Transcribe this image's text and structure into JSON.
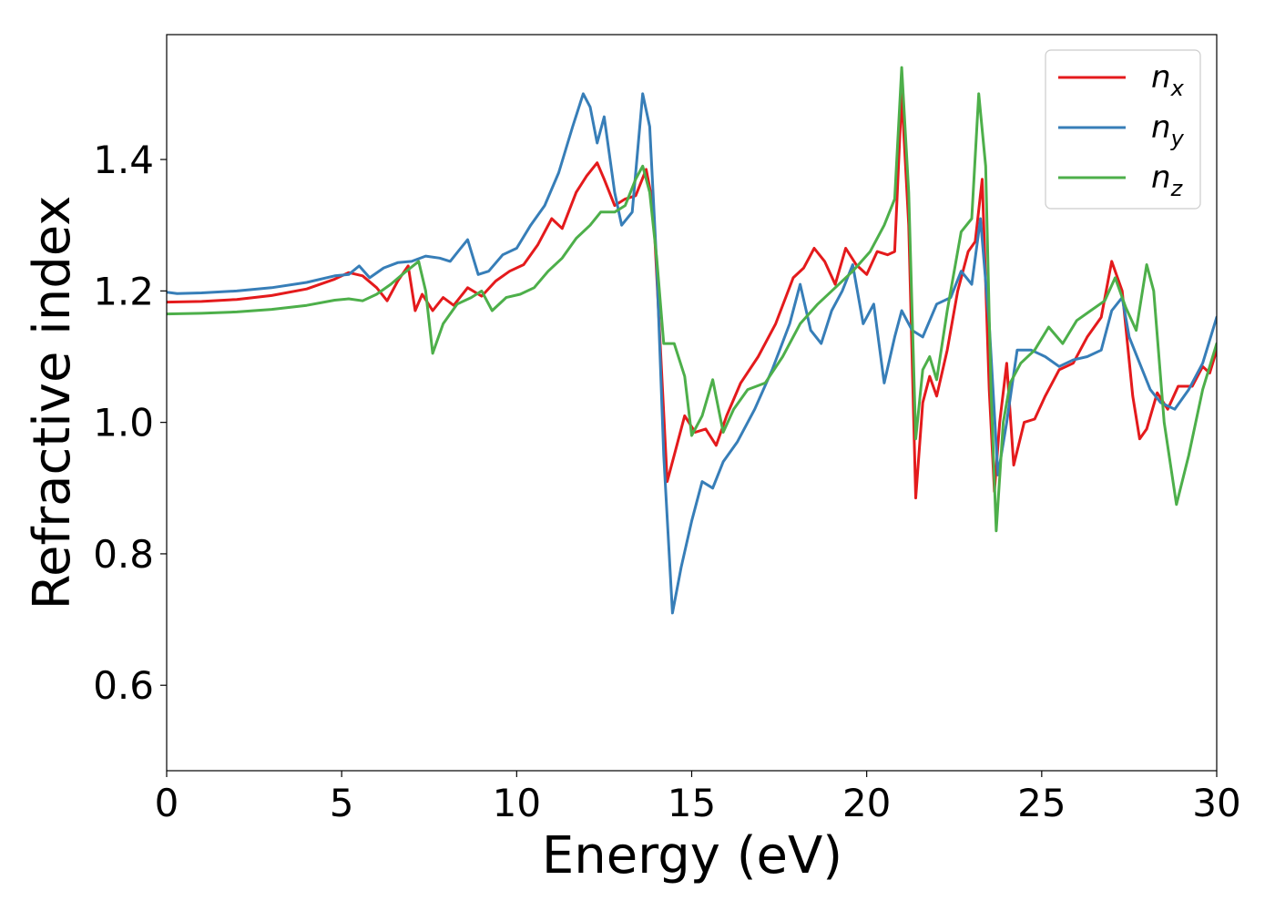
{
  "chart_data": {
    "type": "line",
    "title": "",
    "xlabel": "Energy (eV)",
    "ylabel": "Refractive index",
    "xlim": [
      0,
      30
    ],
    "ylim": [
      0.47,
      1.59
    ],
    "xticks": [
      0,
      5,
      10,
      15,
      20,
      25,
      30
    ],
    "yticks": [
      0.6,
      0.8,
      1.0,
      1.2,
      1.4
    ],
    "xtick_labels": [
      "0",
      "5",
      "10",
      "15",
      "20",
      "25",
      "30"
    ],
    "ytick_labels": [
      "0.6",
      "0.8",
      "1.0",
      "1.2",
      "1.4"
    ],
    "grid": false,
    "legend_position": "top-right",
    "series": [
      {
        "name": "n",
        "subscript": "x",
        "color": "#e41a1c",
        "points": [
          [
            0,
            1.183
          ],
          [
            1,
            1.184
          ],
          [
            2,
            1.187
          ],
          [
            3,
            1.193
          ],
          [
            4,
            1.203
          ],
          [
            4.8,
            1.218
          ],
          [
            5.2,
            1.228
          ],
          [
            5.6,
            1.223
          ],
          [
            6.0,
            1.205
          ],
          [
            6.3,
            1.185
          ],
          [
            6.6,
            1.215
          ],
          [
            6.9,
            1.238
          ],
          [
            7.1,
            1.17
          ],
          [
            7.3,
            1.195
          ],
          [
            7.6,
            1.17
          ],
          [
            7.9,
            1.19
          ],
          [
            8.2,
            1.178
          ],
          [
            8.6,
            1.205
          ],
          [
            9.0,
            1.192
          ],
          [
            9.4,
            1.215
          ],
          [
            9.8,
            1.23
          ],
          [
            10.2,
            1.24
          ],
          [
            10.6,
            1.27
          ],
          [
            11.0,
            1.31
          ],
          [
            11.3,
            1.295
          ],
          [
            11.7,
            1.35
          ],
          [
            12.0,
            1.375
          ],
          [
            12.3,
            1.395
          ],
          [
            12.5,
            1.37
          ],
          [
            12.8,
            1.33
          ],
          [
            13.1,
            1.34
          ],
          [
            13.4,
            1.345
          ],
          [
            13.7,
            1.385
          ],
          [
            13.9,
            1.33
          ],
          [
            14.1,
            1.12
          ],
          [
            14.3,
            0.91
          ],
          [
            14.5,
            0.95
          ],
          [
            14.8,
            1.01
          ],
          [
            15.1,
            0.985
          ],
          [
            15.4,
            0.99
          ],
          [
            15.7,
            0.965
          ],
          [
            16.0,
            1.01
          ],
          [
            16.4,
            1.06
          ],
          [
            16.9,
            1.1
          ],
          [
            17.4,
            1.15
          ],
          [
            17.9,
            1.22
          ],
          [
            18.2,
            1.235
          ],
          [
            18.5,
            1.265
          ],
          [
            18.8,
            1.245
          ],
          [
            19.1,
            1.21
          ],
          [
            19.4,
            1.265
          ],
          [
            19.7,
            1.24
          ],
          [
            20.0,
            1.225
          ],
          [
            20.3,
            1.26
          ],
          [
            20.6,
            1.255
          ],
          [
            20.8,
            1.26
          ],
          [
            21.0,
            1.5
          ],
          [
            21.2,
            1.3
          ],
          [
            21.4,
            0.885
          ],
          [
            21.6,
            1.03
          ],
          [
            21.8,
            1.07
          ],
          [
            22.0,
            1.04
          ],
          [
            22.3,
            1.11
          ],
          [
            22.6,
            1.2
          ],
          [
            22.9,
            1.26
          ],
          [
            23.1,
            1.275
          ],
          [
            23.3,
            1.37
          ],
          [
            23.5,
            1.05
          ],
          [
            23.65,
            0.895
          ],
          [
            23.8,
            1.0
          ],
          [
            24.0,
            1.09
          ],
          [
            24.2,
            0.935
          ],
          [
            24.5,
            1.0
          ],
          [
            24.8,
            1.005
          ],
          [
            25.1,
            1.04
          ],
          [
            25.5,
            1.08
          ],
          [
            25.9,
            1.09
          ],
          [
            26.3,
            1.13
          ],
          [
            26.7,
            1.16
          ],
          [
            27.0,
            1.245
          ],
          [
            27.3,
            1.2
          ],
          [
            27.6,
            1.04
          ],
          [
            27.8,
            0.975
          ],
          [
            28.0,
            0.99
          ],
          [
            28.3,
            1.045
          ],
          [
            28.6,
            1.02
          ],
          [
            28.9,
            1.055
          ],
          [
            29.3,
            1.055
          ],
          [
            29.6,
            1.085
          ],
          [
            29.8,
            1.075
          ],
          [
            30,
            1.11
          ]
        ]
      },
      {
        "name": "n",
        "subscript": "y",
        "color": "#377eb8",
        "points": [
          [
            0,
            1.198
          ],
          [
            0.3,
            1.196
          ],
          [
            1,
            1.197
          ],
          [
            2,
            1.2
          ],
          [
            3,
            1.205
          ],
          [
            4,
            1.213
          ],
          [
            4.8,
            1.223
          ],
          [
            5.2,
            1.225
          ],
          [
            5.5,
            1.238
          ],
          [
            5.8,
            1.22
          ],
          [
            6.2,
            1.235
          ],
          [
            6.6,
            1.243
          ],
          [
            7.0,
            1.245
          ],
          [
            7.4,
            1.253
          ],
          [
            7.8,
            1.25
          ],
          [
            8.1,
            1.245
          ],
          [
            8.4,
            1.265
          ],
          [
            8.6,
            1.278
          ],
          [
            8.9,
            1.225
          ],
          [
            9.2,
            1.23
          ],
          [
            9.6,
            1.255
          ],
          [
            10.0,
            1.265
          ],
          [
            10.4,
            1.3
          ],
          [
            10.8,
            1.33
          ],
          [
            11.2,
            1.38
          ],
          [
            11.6,
            1.45
          ],
          [
            11.9,
            1.5
          ],
          [
            12.1,
            1.48
          ],
          [
            12.3,
            1.425
          ],
          [
            12.5,
            1.465
          ],
          [
            12.8,
            1.35
          ],
          [
            13.0,
            1.3
          ],
          [
            13.3,
            1.32
          ],
          [
            13.6,
            1.5
          ],
          [
            13.8,
            1.45
          ],
          [
            14.0,
            1.24
          ],
          [
            14.2,
            0.95
          ],
          [
            14.45,
            0.71
          ],
          [
            14.7,
            0.78
          ],
          [
            15.0,
            0.85
          ],
          [
            15.3,
            0.91
          ],
          [
            15.6,
            0.9
          ],
          [
            15.9,
            0.94
          ],
          [
            16.3,
            0.97
          ],
          [
            16.8,
            1.02
          ],
          [
            17.3,
            1.08
          ],
          [
            17.8,
            1.15
          ],
          [
            18.1,
            1.21
          ],
          [
            18.4,
            1.14
          ],
          [
            18.7,
            1.12
          ],
          [
            19.0,
            1.17
          ],
          [
            19.3,
            1.2
          ],
          [
            19.6,
            1.24
          ],
          [
            19.9,
            1.15
          ],
          [
            20.2,
            1.18
          ],
          [
            20.5,
            1.06
          ],
          [
            20.8,
            1.13
          ],
          [
            21.0,
            1.17
          ],
          [
            21.3,
            1.14
          ],
          [
            21.6,
            1.13
          ],
          [
            22.0,
            1.18
          ],
          [
            22.4,
            1.19
          ],
          [
            22.7,
            1.23
          ],
          [
            23.0,
            1.21
          ],
          [
            23.25,
            1.31
          ],
          [
            23.5,
            1.15
          ],
          [
            23.75,
            0.92
          ],
          [
            24.0,
            1.0
          ],
          [
            24.3,
            1.11
          ],
          [
            24.7,
            1.11
          ],
          [
            25.1,
            1.1
          ],
          [
            25.5,
            1.085
          ],
          [
            25.9,
            1.095
          ],
          [
            26.3,
            1.1
          ],
          [
            26.7,
            1.11
          ],
          [
            27.0,
            1.17
          ],
          [
            27.3,
            1.19
          ],
          [
            27.5,
            1.13
          ],
          [
            27.8,
            1.09
          ],
          [
            28.1,
            1.05
          ],
          [
            28.4,
            1.03
          ],
          [
            28.8,
            1.02
          ],
          [
            29.2,
            1.05
          ],
          [
            29.6,
            1.09
          ],
          [
            30,
            1.16
          ]
        ]
      },
      {
        "name": "n",
        "subscript": "z",
        "color": "#4daf4a",
        "points": [
          [
            0,
            1.165
          ],
          [
            1,
            1.166
          ],
          [
            2,
            1.168
          ],
          [
            3,
            1.172
          ],
          [
            4,
            1.178
          ],
          [
            4.8,
            1.186
          ],
          [
            5.2,
            1.188
          ],
          [
            5.6,
            1.185
          ],
          [
            6.0,
            1.195
          ],
          [
            6.4,
            1.21
          ],
          [
            6.8,
            1.228
          ],
          [
            7.2,
            1.245
          ],
          [
            7.4,
            1.2
          ],
          [
            7.6,
            1.105
          ],
          [
            7.9,
            1.15
          ],
          [
            8.3,
            1.18
          ],
          [
            8.7,
            1.19
          ],
          [
            9.0,
            1.2
          ],
          [
            9.3,
            1.17
          ],
          [
            9.7,
            1.19
          ],
          [
            10.1,
            1.195
          ],
          [
            10.5,
            1.205
          ],
          [
            10.9,
            1.23
          ],
          [
            11.3,
            1.25
          ],
          [
            11.7,
            1.28
          ],
          [
            12.1,
            1.3
          ],
          [
            12.4,
            1.32
          ],
          [
            12.8,
            1.32
          ],
          [
            13.1,
            1.33
          ],
          [
            13.4,
            1.37
          ],
          [
            13.6,
            1.39
          ],
          [
            13.8,
            1.35
          ],
          [
            14.0,
            1.25
          ],
          [
            14.2,
            1.12
          ],
          [
            14.5,
            1.12
          ],
          [
            14.8,
            1.07
          ],
          [
            15.0,
            0.98
          ],
          [
            15.3,
            1.01
          ],
          [
            15.6,
            1.065
          ],
          [
            15.9,
            0.985
          ],
          [
            16.2,
            1.02
          ],
          [
            16.6,
            1.05
          ],
          [
            17.1,
            1.06
          ],
          [
            17.6,
            1.1
          ],
          [
            18.1,
            1.15
          ],
          [
            18.6,
            1.18
          ],
          [
            19.1,
            1.205
          ],
          [
            19.6,
            1.23
          ],
          [
            20.1,
            1.26
          ],
          [
            20.5,
            1.3
          ],
          [
            20.8,
            1.34
          ],
          [
            21.0,
            1.54
          ],
          [
            21.2,
            1.35
          ],
          [
            21.4,
            0.975
          ],
          [
            21.6,
            1.08
          ],
          [
            21.8,
            1.1
          ],
          [
            22.0,
            1.065
          ],
          [
            22.3,
            1.17
          ],
          [
            22.7,
            1.29
          ],
          [
            23.0,
            1.31
          ],
          [
            23.2,
            1.5
          ],
          [
            23.4,
            1.39
          ],
          [
            23.55,
            1.05
          ],
          [
            23.7,
            0.835
          ],
          [
            23.9,
            1.0
          ],
          [
            24.1,
            1.06
          ],
          [
            24.4,
            1.09
          ],
          [
            24.8,
            1.11
          ],
          [
            25.2,
            1.145
          ],
          [
            25.6,
            1.12
          ],
          [
            26.0,
            1.155
          ],
          [
            26.4,
            1.17
          ],
          [
            26.8,
            1.185
          ],
          [
            27.1,
            1.22
          ],
          [
            27.4,
            1.175
          ],
          [
            27.7,
            1.14
          ],
          [
            28.0,
            1.24
          ],
          [
            28.2,
            1.2
          ],
          [
            28.5,
            1.0
          ],
          [
            28.85,
            0.875
          ],
          [
            29.2,
            0.95
          ],
          [
            29.6,
            1.05
          ],
          [
            30,
            1.12
          ]
        ]
      }
    ]
  }
}
